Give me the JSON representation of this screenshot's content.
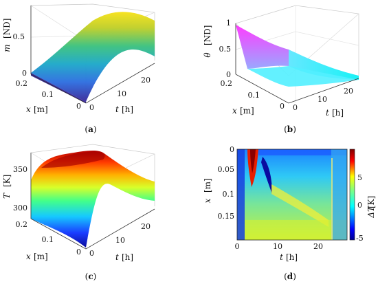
{
  "chart_data": [
    {
      "panel": "a",
      "type": "surface",
      "caption": "(a)",
      "zlabel": {
        "sym": "m",
        "unit": "[ND]"
      },
      "xlabel": {
        "sym": "x",
        "unit": "[m]"
      },
      "tlabel": {
        "sym": "t",
        "unit": "[h]"
      },
      "z_ticks": [
        "0",
        "0.5"
      ],
      "x_ticks": [
        "0.2",
        "0.1",
        "0"
      ],
      "t_ticks": [
        "0",
        "10",
        "20"
      ],
      "zlim": [
        0,
        0.6
      ],
      "xlim": [
        0,
        0.2
      ],
      "tlim": [
        0,
        24
      ],
      "colormap": "parula-like (blue-green-yellow)",
      "description_values": {
        "t": [
          0,
          6,
          12,
          18,
          24
        ],
        "m": [
          0.0,
          0.22,
          0.4,
          0.52,
          0.58
        ]
      }
    },
    {
      "panel": "b",
      "type": "surface",
      "caption": "(b)",
      "zlabel": {
        "sym": "θ",
        "unit": "[ND]"
      },
      "xlabel": {
        "sym": "x",
        "unit": "[m]"
      },
      "tlabel": {
        "sym": "t",
        "unit": "[h]"
      },
      "z_ticks": [
        "0",
        "0.5",
        "1"
      ],
      "x_ticks": [
        "0.2",
        "0.1",
        "0"
      ],
      "t_ticks": [
        "0",
        "10",
        "20"
      ],
      "zlim": [
        0,
        1
      ],
      "xlim": [
        0,
        0.2
      ],
      "tlim": [
        0,
        24
      ],
      "colormap": "cool (magenta-cyan)",
      "description_values": {
        "t": [
          0,
          6,
          12,
          18,
          24
        ],
        "theta": [
          1.0,
          0.55,
          0.25,
          0.1,
          0.03
        ]
      }
    },
    {
      "panel": "c",
      "type": "surface",
      "caption": "(c)",
      "zlabel": {
        "sym": "T",
        "unit": "[K]"
      },
      "xlabel": {
        "sym": "x",
        "unit": "[m]"
      },
      "tlabel": {
        "sym": "t",
        "unit": "[h]"
      },
      "z_ticks": [
        "300",
        "350"
      ],
      "x_ticks": [
        "0.2",
        "0.1",
        "0"
      ],
      "t_ticks": [
        "0",
        "10",
        "20"
      ],
      "zlim": [
        290,
        355
      ],
      "xlim": [
        0,
        0.2
      ],
      "tlim": [
        0,
        24
      ],
      "colormap": "jet",
      "description_values": {
        "t": [
          0,
          4,
          8,
          12,
          16,
          20,
          24
        ],
        "T": [
          300,
          345,
          350,
          340,
          320,
          312,
          310
        ]
      }
    },
    {
      "panel": "d",
      "type": "heatmap",
      "caption": "(d)",
      "xlabel": {
        "sym": "t",
        "unit": "[h]"
      },
      "ylabel": {
        "sym": "x",
        "unit": "[m]"
      },
      "cbar_label": {
        "sym": "ΔT",
        "unit": "[K]"
      },
      "x_ticks": [
        "0",
        "10",
        "20"
      ],
      "y_ticks": [
        "0",
        "0.05",
        "0.1",
        "0.15"
      ],
      "cbar_ticks": [
        "5",
        "0",
        "-5"
      ],
      "xlim": [
        0,
        27
      ],
      "ylim": [
        0,
        0.2
      ],
      "clim": [
        -5,
        7
      ],
      "colormap": "jet"
    }
  ]
}
